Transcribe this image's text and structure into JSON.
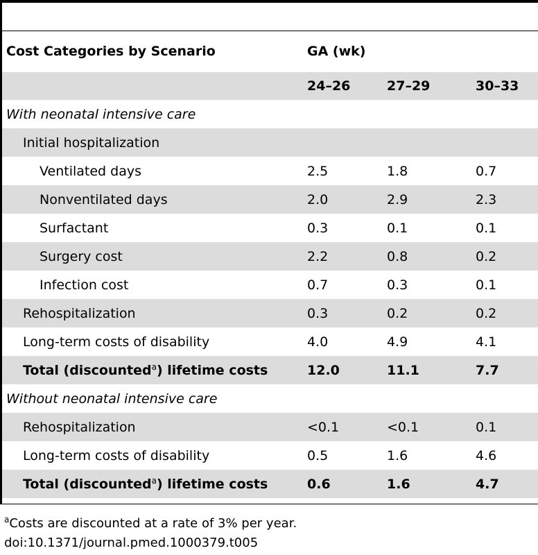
{
  "table": {
    "header": {
      "category_label": "Cost Categories by Scenario",
      "group_label": "GA (wk)",
      "columns": [
        "24–26",
        "27–29",
        "30–33"
      ]
    },
    "sections": [
      {
        "title": "With neonatal intensive care",
        "rows": [
          {
            "label": "Initial hospitalization",
            "values": [
              "",
              "",
              ""
            ]
          },
          {
            "label": "Ventilated days",
            "values": [
              "2.5",
              "1.8",
              "0.7"
            ]
          },
          {
            "label": "Nonventilated days",
            "values": [
              "2.0",
              "2.9",
              "2.3"
            ]
          },
          {
            "label": "Surfactant",
            "values": [
              "0.3",
              "0.1",
              "0.1"
            ]
          },
          {
            "label": "Surgery cost",
            "values": [
              "2.2",
              "0.8",
              "0.2"
            ]
          },
          {
            "label": "Infection cost",
            "values": [
              "0.7",
              "0.3",
              "0.1"
            ]
          },
          {
            "label": "Rehospitalization",
            "values": [
              "0.3",
              "0.2",
              "0.2"
            ]
          },
          {
            "label": "Long-term costs of disability",
            "values": [
              "4.0",
              "4.9",
              "4.1"
            ]
          }
        ],
        "total": {
          "label_pre": "Total (discounted",
          "sup": "a",
          "label_post": ") lifetime costs",
          "values": [
            "12.0",
            "11.1",
            "7.7"
          ]
        }
      },
      {
        "title": "Without neonatal intensive care",
        "rows": [
          {
            "label": "Rehospitalization",
            "values": [
              "<0.1",
              "<0.1",
              "0.1"
            ]
          },
          {
            "label": "Long-term costs of disability",
            "values": [
              "0.5",
              "1.6",
              "4.6"
            ]
          }
        ],
        "total": {
          "label_pre": "Total (discounted",
          "sup": "a",
          "label_post": ") lifetime costs",
          "values": [
            "0.6",
            "1.6",
            "4.7"
          ]
        }
      }
    ]
  },
  "footnote": {
    "mark": "a",
    "text": "Costs are discounted at a rate of 3% per year."
  },
  "doi": "doi:10.1371/journal.pmed.1000379.t005"
}
